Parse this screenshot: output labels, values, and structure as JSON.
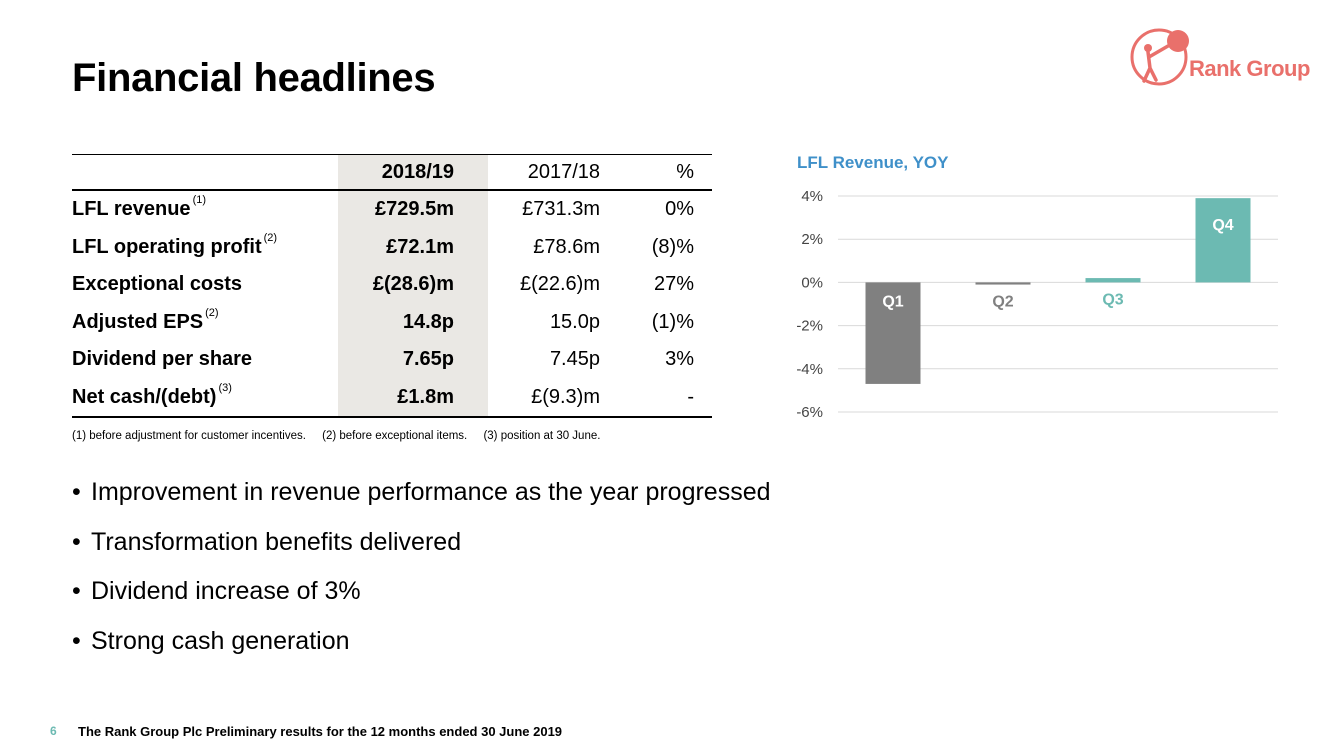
{
  "header": {
    "title": "Financial headlines"
  },
  "logo": {
    "text": "Rank Group",
    "color": "#e9706b"
  },
  "table": {
    "columns": [
      "",
      "2018/19",
      "2017/18",
      "%"
    ],
    "rows": [
      {
        "label": "LFL revenue",
        "note": "(1)",
        "current": "£729.5m",
        "prior": "£731.3m",
        "change": "0%"
      },
      {
        "label": "LFL operating profit",
        "note": "(2)",
        "current": "£72.1m",
        "prior": "£78.6m",
        "change": "(8)%"
      },
      {
        "label": "Exceptional costs",
        "note": "",
        "current": "£(28.6)m",
        "prior": "£(22.6)m",
        "change": "27%"
      },
      {
        "label": "Adjusted EPS",
        "note": "(2)",
        "current": "14.8p",
        "prior": "15.0p",
        "change": "(1)%"
      },
      {
        "label": "Dividend per share",
        "note": "",
        "current": "7.65p",
        "prior": "7.45p",
        "change": "3%"
      },
      {
        "label": "Net cash/(debt)",
        "note": "(3)",
        "current": "£1.8m",
        "prior": "£(9.3)m",
        "change": "-"
      }
    ]
  },
  "footnotes": [
    "(1)  before adjustment for customer incentives.",
    "(2)  before exceptional items.",
    "(3)  position at 30 June."
  ],
  "bullets": [
    "Improvement in revenue performance as the year progressed",
    "Transformation benefits delivered",
    "Dividend increase of 3%",
    "Strong cash generation"
  ],
  "chart_data": {
    "type": "bar",
    "title": "LFL Revenue, YOY",
    "categories": [
      "Q1",
      "Q2",
      "Q3",
      "Q4"
    ],
    "values": [
      -4.7,
      -0.1,
      0.2,
      3.9
    ],
    "colors": [
      "#808080",
      "#808080",
      "#6cbab2",
      "#6cbab2"
    ],
    "label_colors": [
      "#ffffff",
      "#808080",
      "#6cbab2",
      "#ffffff"
    ],
    "yticks": [
      "4%",
      "2%",
      "0%",
      "-2%",
      "-4%",
      "-6%"
    ],
    "ylim": [
      -6,
      4
    ],
    "grid": true,
    "xlabel": "",
    "ylabel": ""
  },
  "footer": {
    "page_number": "6",
    "text": "The Rank Group Plc Preliminary results for the 12 months ended 30 June 2019"
  }
}
